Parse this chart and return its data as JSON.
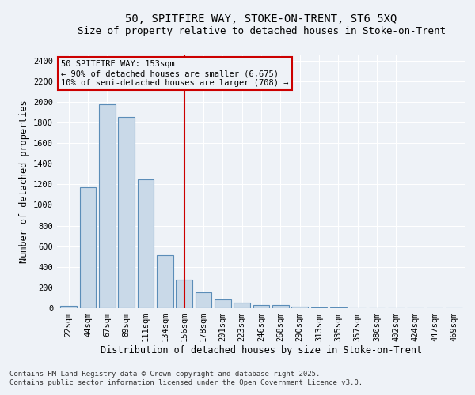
{
  "title1": "50, SPITFIRE WAY, STOKE-ON-TRENT, ST6 5XQ",
  "title2": "Size of property relative to detached houses in Stoke-on-Trent",
  "xlabel": "Distribution of detached houses by size in Stoke-on-Trent",
  "ylabel": "Number of detached properties",
  "categories": [
    "22sqm",
    "44sqm",
    "67sqm",
    "89sqm",
    "111sqm",
    "134sqm",
    "156sqm",
    "178sqm",
    "201sqm",
    "223sqm",
    "246sqm",
    "268sqm",
    "290sqm",
    "313sqm",
    "335sqm",
    "357sqm",
    "380sqm",
    "402sqm",
    "424sqm",
    "447sqm",
    "469sqm"
  ],
  "values": [
    25,
    1175,
    1975,
    1850,
    1245,
    515,
    275,
    155,
    85,
    50,
    32,
    28,
    15,
    8,
    4,
    3,
    2,
    1,
    1,
    1,
    0
  ],
  "bar_color": "#c9d9e8",
  "bar_edge_color": "#5b8db8",
  "vline_x_index": 6,
  "vline_color": "#cc0000",
  "annotation_line1": "50 SPITFIRE WAY: 153sqm",
  "annotation_line2": "← 90% of detached houses are smaller (6,675)",
  "annotation_line3": "10% of semi-detached houses are larger (708) →",
  "annotation_box_color": "#cc0000",
  "ylim": [
    0,
    2450
  ],
  "yticks": [
    0,
    200,
    400,
    600,
    800,
    1000,
    1200,
    1400,
    1600,
    1800,
    2000,
    2200,
    2400
  ],
  "footer1": "Contains HM Land Registry data © Crown copyright and database right 2025.",
  "footer2": "Contains public sector information licensed under the Open Government Licence v3.0.",
  "bg_color": "#eef2f7",
  "grid_color": "#ffffff",
  "title_fontsize": 10,
  "subtitle_fontsize": 9,
  "axis_label_fontsize": 8.5,
  "tick_fontsize": 7.5,
  "annotation_fontsize": 7.5,
  "footer_fontsize": 6.5
}
